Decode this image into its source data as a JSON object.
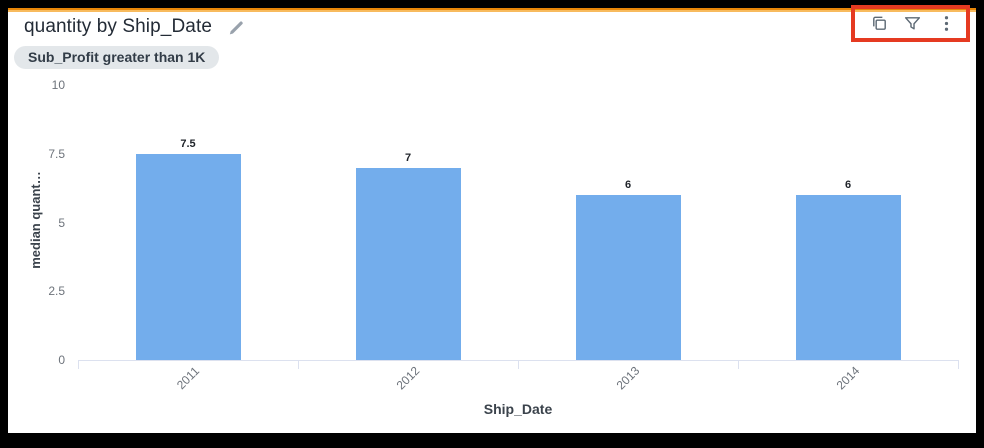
{
  "header": {
    "title": "quantity by Ship_Date",
    "edit_icon": "pencil-icon",
    "filter_chip": "Sub_Profit greater than 1K",
    "toolbar_icons": [
      {
        "name": "copy-icon"
      },
      {
        "name": "filter-icon"
      },
      {
        "name": "more-options-icon"
      }
    ],
    "toolbar_highlight_color": "#e53a21",
    "accent_color": "#e98708"
  },
  "chart_data": {
    "type": "bar",
    "title": "quantity by Ship_Date",
    "categories": [
      "2011",
      "2012",
      "2013",
      "2014"
    ],
    "values": [
      7.5,
      7,
      6,
      6
    ],
    "data_labels": [
      "7.5",
      "7",
      "6",
      "6"
    ],
    "xlabel": "Ship_Date",
    "ylabel": "median quant…",
    "ylim": [
      0,
      10
    ],
    "yticks": [
      0,
      2.5,
      5,
      7.5,
      10
    ],
    "ytick_labels": [
      "0",
      "2.5",
      "5",
      "7.5",
      "10"
    ],
    "grid": false,
    "legend": "none",
    "bar_color": "#73adec",
    "axis_color": "#dce1ef"
  }
}
